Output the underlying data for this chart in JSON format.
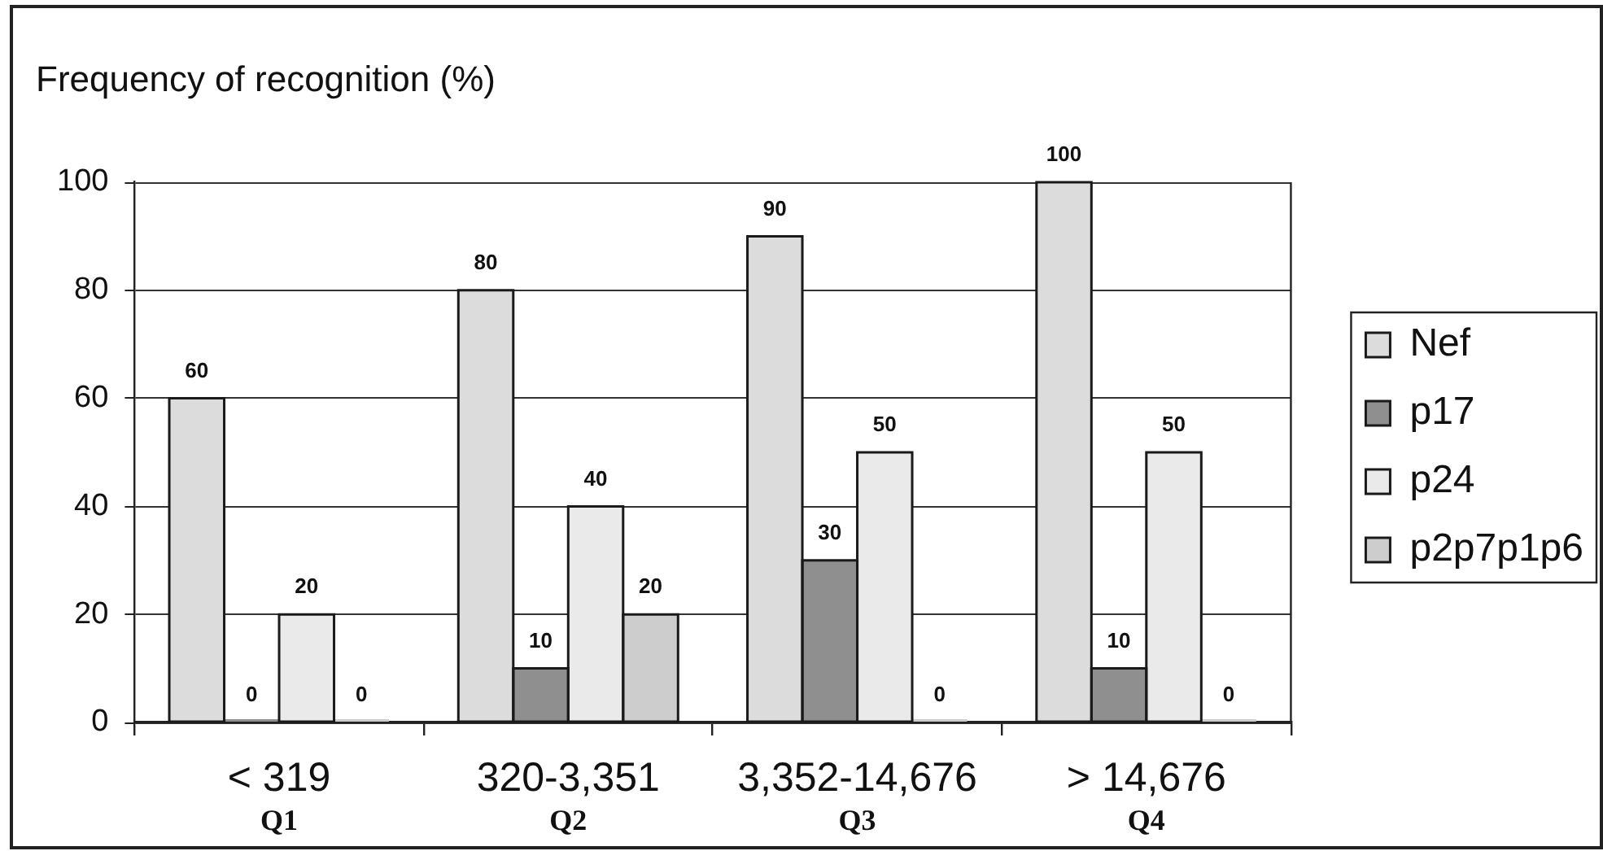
{
  "chart_data": {
    "type": "bar",
    "ylabel": "Frequency of recognition (%)",
    "categories": [
      "< 319\nQ1",
      "320-3,351\nQ2",
      "3,352-14,676\nQ3",
      "> 14,676\nQ4"
    ],
    "series": [
      {
        "name": "Nef",
        "color": "#dcdcdc",
        "values": [
          60,
          80,
          90,
          100
        ]
      },
      {
        "name": "p17",
        "color": "#8f8f8f",
        "values": [
          0,
          10,
          30,
          10
        ]
      },
      {
        "name": "p24",
        "color": "#eaeaea",
        "values": [
          20,
          40,
          50,
          50
        ]
      },
      {
        "name": "p2p7p1p6",
        "color": "#cdcdcd",
        "values": [
          0,
          20,
          0,
          0
        ]
      }
    ],
    "ylim": [
      0,
      100
    ],
    "yticks": [
      0,
      20,
      40,
      60,
      80,
      100
    ],
    "grid": "y",
    "legend": "right",
    "data_labels": true
  }
}
